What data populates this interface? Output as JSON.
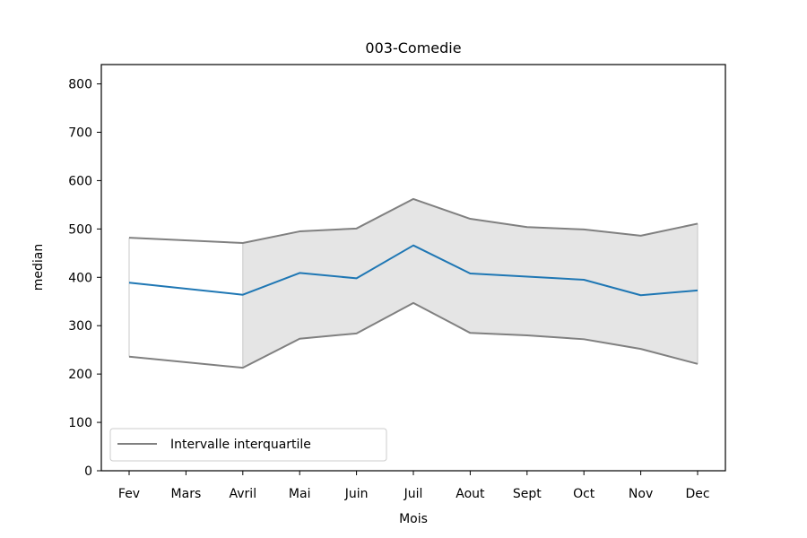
{
  "chart_data": {
    "type": "line",
    "title": "003-Comedie",
    "xlabel": "Mois",
    "ylabel": "median",
    "categories": [
      "Fev",
      "Mars",
      "Avril",
      "Mai",
      "Juin",
      "Juil",
      "Aout",
      "Sept",
      "Oct",
      "Nov",
      "Dec"
    ],
    "ylim": [
      0,
      840
    ],
    "yticks": [
      0,
      100,
      200,
      300,
      400,
      500,
      600,
      700,
      800
    ],
    "grid": false,
    "legend": {
      "position": "lower-left",
      "entries": [
        "Intervalle interquartile"
      ]
    },
    "series": [
      {
        "role": "median",
        "color": "#1f77b4",
        "values": [
          389,
          null,
          364,
          409,
          398,
          466,
          408,
          null,
          395,
          363,
          373
        ]
      },
      {
        "name": "Intervalle interquartile",
        "role": "q3",
        "color": "#808080",
        "values": [
          482,
          null,
          471,
          495,
          501,
          562,
          521,
          504,
          499,
          486,
          511
        ]
      },
      {
        "role": "q1",
        "color": "#808080",
        "values": [
          236,
          null,
          213,
          273,
          284,
          347,
          285,
          280,
          272,
          252,
          221
        ]
      }
    ],
    "fill_between": {
      "upper": "q3",
      "lower": "q1",
      "color": "#e5e5e5"
    }
  }
}
